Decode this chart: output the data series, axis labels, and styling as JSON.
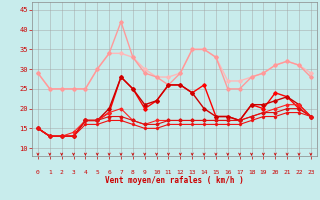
{
  "title": "",
  "xlabel": "Vent moyen/en rafales ( km/h )",
  "ylabel": "",
  "background_color": "#c8ecec",
  "grid_color": "#a0a0a0",
  "xlim": [
    -0.5,
    23.5
  ],
  "ylim": [
    8,
    47
  ],
  "yticks": [
    10,
    15,
    20,
    25,
    30,
    35,
    40,
    45
  ],
  "xticks": [
    0,
    1,
    2,
    3,
    4,
    5,
    6,
    7,
    8,
    9,
    10,
    11,
    12,
    13,
    14,
    15,
    16,
    17,
    18,
    19,
    20,
    21,
    22,
    23
  ],
  "series": [
    {
      "x": [
        0,
        1,
        2,
        3,
        4,
        5,
        6,
        7,
        8,
        9,
        10,
        11,
        12,
        13,
        14,
        15,
        16,
        17,
        18,
        19,
        20,
        21,
        22,
        23
      ],
      "y": [
        29,
        25,
        25,
        25,
        25,
        30,
        34,
        34,
        33,
        30,
        28,
        28,
        29,
        35,
        35,
        33,
        27,
        27,
        28,
        29,
        31,
        32,
        31,
        29
      ],
      "color": "#ffb8b8",
      "lw": 1.0,
      "marker": "D",
      "ms": 1.8
    },
    {
      "x": [
        0,
        1,
        2,
        3,
        4,
        5,
        6,
        7,
        8,
        9,
        10,
        11,
        12,
        13,
        14,
        15,
        16,
        17,
        18,
        19,
        20,
        21,
        22,
        23
      ],
      "y": [
        29,
        25,
        25,
        25,
        25,
        30,
        34,
        42,
        33,
        29,
        28,
        26,
        29,
        35,
        35,
        33,
        25,
        25,
        28,
        29,
        31,
        32,
        31,
        28
      ],
      "color": "#ff9999",
      "lw": 1.0,
      "marker": "D",
      "ms": 1.8
    },
    {
      "x": [
        0,
        1,
        2,
        3,
        4,
        5,
        6,
        7,
        8,
        9,
        10,
        11,
        12,
        13,
        14,
        15,
        16,
        17,
        18,
        19,
        20,
        21,
        22,
        23
      ],
      "y": [
        15,
        13,
        13,
        13,
        17,
        17,
        19,
        28,
        25,
        20,
        22,
        26,
        26,
        24,
        26,
        18,
        18,
        17,
        21,
        20,
        24,
        23,
        20,
        18
      ],
      "color": "#ff0000",
      "lw": 1.0,
      "marker": "D",
      "ms": 1.8
    },
    {
      "x": [
        0,
        1,
        2,
        3,
        4,
        5,
        6,
        7,
        8,
        9,
        10,
        11,
        12,
        13,
        14,
        15,
        16,
        17,
        18,
        19,
        20,
        21,
        22,
        23
      ],
      "y": [
        15,
        13,
        13,
        13,
        17,
        17,
        20,
        28,
        25,
        21,
        22,
        26,
        26,
        24,
        20,
        18,
        18,
        17,
        21,
        21,
        22,
        23,
        21,
        18
      ],
      "color": "#cc0000",
      "lw": 1.0,
      "marker": "D",
      "ms": 1.8
    },
    {
      "x": [
        0,
        1,
        2,
        3,
        4,
        5,
        6,
        7,
        8,
        9,
        10,
        11,
        12,
        13,
        14,
        15,
        16,
        17,
        18,
        19,
        20,
        21,
        22,
        23
      ],
      "y": [
        15,
        13,
        13,
        14,
        17,
        17,
        19,
        20,
        17,
        16,
        17,
        17,
        17,
        17,
        17,
        17,
        17,
        17,
        18,
        19,
        20,
        21,
        21,
        18
      ],
      "color": "#ff2222",
      "lw": 0.8,
      "marker": "D",
      "ms": 1.5
    },
    {
      "x": [
        0,
        1,
        2,
        3,
        4,
        5,
        6,
        7,
        8,
        9,
        10,
        11,
        12,
        13,
        14,
        15,
        16,
        17,
        18,
        19,
        20,
        21,
        22,
        23
      ],
      "y": [
        15,
        13,
        13,
        13,
        17,
        17,
        18,
        18,
        17,
        16,
        16,
        17,
        17,
        17,
        17,
        17,
        17,
        17,
        18,
        19,
        19,
        20,
        20,
        18
      ],
      "color": "#dd1111",
      "lw": 0.8,
      "marker": "D",
      "ms": 1.5
    },
    {
      "x": [
        0,
        1,
        2,
        3,
        4,
        5,
        6,
        7,
        8,
        9,
        10,
        11,
        12,
        13,
        14,
        15,
        16,
        17,
        18,
        19,
        20,
        21,
        22,
        23
      ],
      "y": [
        15,
        13,
        13,
        13,
        16,
        16,
        17,
        17,
        16,
        15,
        15,
        16,
        16,
        16,
        16,
        16,
        16,
        16,
        17,
        18,
        18,
        19,
        19,
        18
      ],
      "color": "#ee1111",
      "lw": 0.8,
      "marker": "D",
      "ms": 1.2
    }
  ]
}
